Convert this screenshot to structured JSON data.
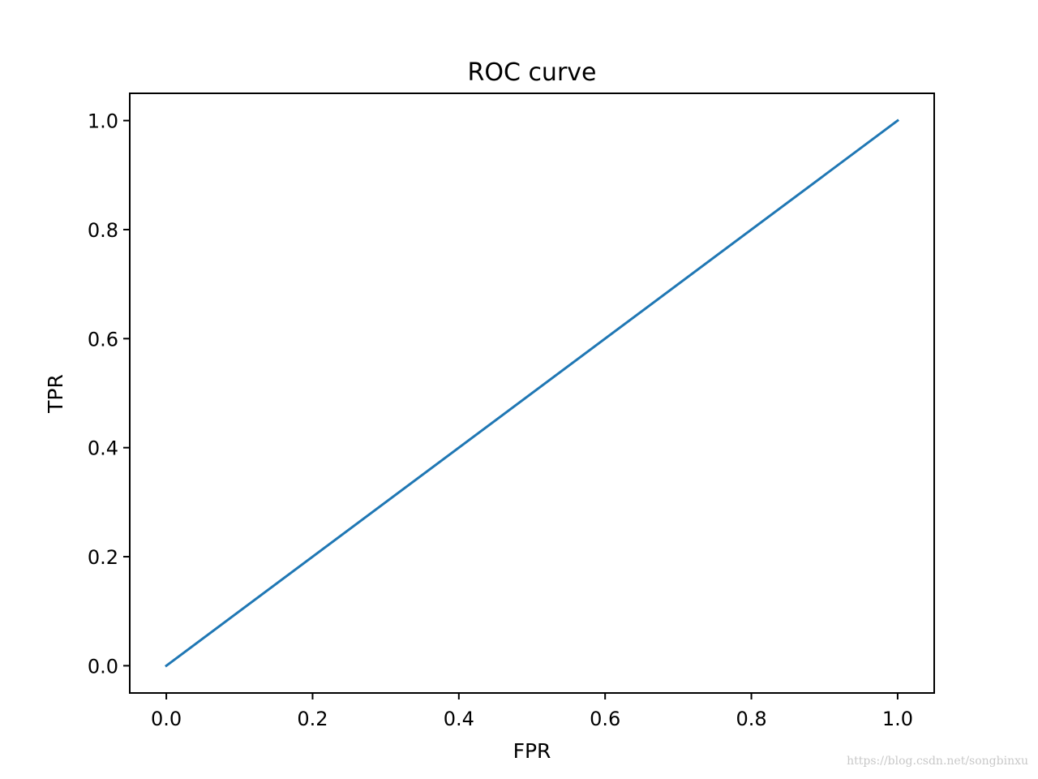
{
  "chart_data": {
    "type": "line",
    "title": "ROC curve",
    "xlabel": "FPR",
    "ylabel": "TPR",
    "xlim": [
      -0.05,
      1.05
    ],
    "ylim": [
      -0.05,
      1.05
    ],
    "xticks": [
      "0.0",
      "0.2",
      "0.4",
      "0.6",
      "0.8",
      "1.0"
    ],
    "yticks": [
      "0.0",
      "0.2",
      "0.4",
      "0.6",
      "0.8",
      "1.0"
    ],
    "series": [
      {
        "color": "#1f77b4",
        "x": [
          0.0,
          1.0
        ],
        "y": [
          0.0,
          1.0
        ]
      }
    ],
    "grid": false,
    "legend": "none"
  },
  "watermark": "https://blog.csdn.net/songbinxu"
}
